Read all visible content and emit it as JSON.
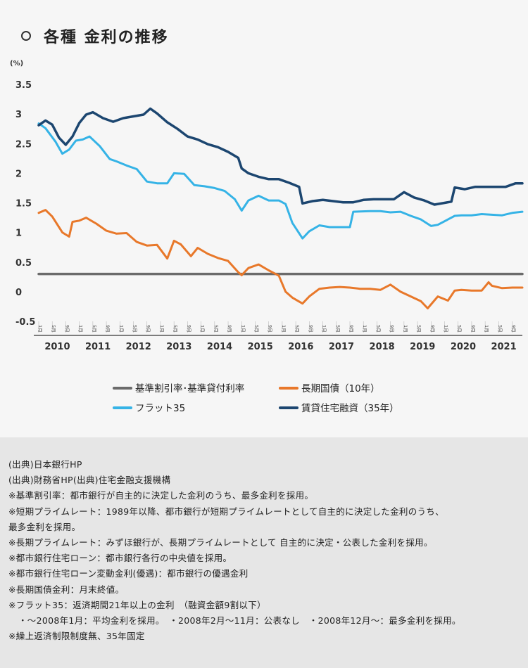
{
  "title": "各種 金利の推移",
  "unit_label": "(%)",
  "legend": {
    "base_rate": "基準割引率･基準貸付利率",
    "jgb10": "長期国債（10年）",
    "flat35": "フラット35",
    "bank_mortgage": "賃貸住宅融資（35年）"
  },
  "colors": {
    "base_rate": "#6b6b6b",
    "jgb10": "#e8782a",
    "flat35": "#35b3e6",
    "bank_mortgage": "#1c4670"
  },
  "chart_data": {
    "type": "line",
    "title": "各種 金利の推移",
    "ylabel": "(%)",
    "xlabel": "",
    "ylim": [
      -0.5,
      3.5
    ],
    "yticks": [
      "3.5",
      "3",
      "2.5",
      "2",
      "1.5",
      "1",
      "0.5",
      "0",
      "-0.5"
    ],
    "x_start": "2010-01",
    "x_end": "2021-12",
    "years": [
      "2010",
      "2011",
      "2012",
      "2013",
      "2014",
      "2015",
      "2016",
      "2017",
      "2018",
      "2019",
      "2020",
      "2021"
    ],
    "month_ticks": [
      "1月",
      "5月",
      "9月"
    ],
    "series": [
      {
        "key": "base_rate",
        "name": "基準割引率･基準貸付利率",
        "points": [
          [
            "2010-01",
            0.3
          ],
          [
            "2021-12",
            0.3
          ]
        ]
      },
      {
        "key": "jgb10",
        "name": "長期国債（10年）",
        "points": [
          [
            "2010-01",
            1.33
          ],
          [
            "2010-03",
            1.38
          ],
          [
            "2010-05",
            1.27
          ],
          [
            "2010-08",
            1.0
          ],
          [
            "2010-10",
            0.93
          ],
          [
            "2010-11",
            1.18
          ],
          [
            "2011-01",
            1.2
          ],
          [
            "2011-03",
            1.25
          ],
          [
            "2011-06",
            1.15
          ],
          [
            "2011-09",
            1.03
          ],
          [
            "2011-12",
            0.98
          ],
          [
            "2012-03",
            0.99
          ],
          [
            "2012-06",
            0.84
          ],
          [
            "2012-09",
            0.78
          ],
          [
            "2012-12",
            0.79
          ],
          [
            "2013-03",
            0.56
          ],
          [
            "2013-05",
            0.86
          ],
          [
            "2013-07",
            0.8
          ],
          [
            "2013-10",
            0.6
          ],
          [
            "2013-12",
            0.74
          ],
          [
            "2014-03",
            0.64
          ],
          [
            "2014-06",
            0.57
          ],
          [
            "2014-09",
            0.52
          ],
          [
            "2014-12",
            0.33
          ],
          [
            "2015-01",
            0.28
          ],
          [
            "2015-03",
            0.4
          ],
          [
            "2015-06",
            0.46
          ],
          [
            "2015-09",
            0.36
          ],
          [
            "2015-12",
            0.27
          ],
          [
            "2016-02",
            0.0
          ],
          [
            "2016-04",
            -0.1
          ],
          [
            "2016-07",
            -0.2
          ],
          [
            "2016-09",
            -0.08
          ],
          [
            "2016-12",
            0.05
          ],
          [
            "2017-03",
            0.07
          ],
          [
            "2017-06",
            0.08
          ],
          [
            "2017-09",
            0.07
          ],
          [
            "2017-12",
            0.05
          ],
          [
            "2018-03",
            0.05
          ],
          [
            "2018-06",
            0.03
          ],
          [
            "2018-09",
            0.12
          ],
          [
            "2018-12",
            0.0
          ],
          [
            "2019-03",
            -0.08
          ],
          [
            "2019-06",
            -0.16
          ],
          [
            "2019-08",
            -0.28
          ],
          [
            "2019-11",
            -0.08
          ],
          [
            "2020-02",
            -0.15
          ],
          [
            "2020-04",
            0.02
          ],
          [
            "2020-06",
            0.03
          ],
          [
            "2020-09",
            0.02
          ],
          [
            "2020-12",
            0.02
          ],
          [
            "2021-02",
            0.16
          ],
          [
            "2021-03",
            0.1
          ],
          [
            "2021-06",
            0.06
          ],
          [
            "2021-09",
            0.07
          ],
          [
            "2021-12",
            0.07
          ]
        ]
      },
      {
        "key": "flat35",
        "name": "フラット35",
        "points": [
          [
            "2010-01",
            2.84
          ],
          [
            "2010-03",
            2.76
          ],
          [
            "2010-06",
            2.53
          ],
          [
            "2010-08",
            2.33
          ],
          [
            "2010-10",
            2.4
          ],
          [
            "2010-12",
            2.55
          ],
          [
            "2011-02",
            2.57
          ],
          [
            "2011-04",
            2.62
          ],
          [
            "2011-07",
            2.46
          ],
          [
            "2011-10",
            2.24
          ],
          [
            "2011-12",
            2.2
          ],
          [
            "2012-03",
            2.13
          ],
          [
            "2012-06",
            2.07
          ],
          [
            "2012-09",
            1.86
          ],
          [
            "2012-12",
            1.83
          ],
          [
            "2013-03",
            1.83
          ],
          [
            "2013-05",
            2.0
          ],
          [
            "2013-08",
            1.99
          ],
          [
            "2013-11",
            1.8
          ],
          [
            "2014-02",
            1.78
          ],
          [
            "2014-05",
            1.75
          ],
          [
            "2014-08",
            1.7
          ],
          [
            "2014-11",
            1.56
          ],
          [
            "2015-01",
            1.37
          ],
          [
            "2015-03",
            1.54
          ],
          [
            "2015-06",
            1.62
          ],
          [
            "2015-09",
            1.54
          ],
          [
            "2015-12",
            1.54
          ],
          [
            "2016-02",
            1.48
          ],
          [
            "2016-04",
            1.16
          ],
          [
            "2016-07",
            0.9
          ],
          [
            "2016-09",
            1.02
          ],
          [
            "2016-12",
            1.12
          ],
          [
            "2017-03",
            1.09
          ],
          [
            "2017-06",
            1.09
          ],
          [
            "2017-09",
            1.09
          ],
          [
            "2017-10",
            1.35
          ],
          [
            "2018-03",
            1.36
          ],
          [
            "2018-06",
            1.36
          ],
          [
            "2018-09",
            1.34
          ],
          [
            "2018-12",
            1.35
          ],
          [
            "2019-03",
            1.28
          ],
          [
            "2019-06",
            1.22
          ],
          [
            "2019-09",
            1.11
          ],
          [
            "2019-11",
            1.13
          ],
          [
            "2020-02",
            1.22
          ],
          [
            "2020-04",
            1.28
          ],
          [
            "2020-06",
            1.29
          ],
          [
            "2020-09",
            1.29
          ],
          [
            "2020-12",
            1.31
          ],
          [
            "2021-03",
            1.3
          ],
          [
            "2021-06",
            1.29
          ],
          [
            "2021-09",
            1.33
          ],
          [
            "2021-12",
            1.35
          ]
        ]
      },
      {
        "key": "bank_mortgage",
        "name": "賃貸住宅融資（35年）",
        "points": [
          [
            "2010-01",
            2.81
          ],
          [
            "2010-03",
            2.89
          ],
          [
            "2010-05",
            2.82
          ],
          [
            "2010-07",
            2.6
          ],
          [
            "2010-09",
            2.48
          ],
          [
            "2010-11",
            2.62
          ],
          [
            "2011-01",
            2.85
          ],
          [
            "2011-03",
            2.99
          ],
          [
            "2011-05",
            3.03
          ],
          [
            "2011-08",
            2.93
          ],
          [
            "2011-11",
            2.87
          ],
          [
            "2012-02",
            2.93
          ],
          [
            "2012-05",
            2.96
          ],
          [
            "2012-08",
            2.99
          ],
          [
            "2012-10",
            3.09
          ],
          [
            "2012-12",
            3.01
          ],
          [
            "2013-03",
            2.86
          ],
          [
            "2013-06",
            2.75
          ],
          [
            "2013-09",
            2.62
          ],
          [
            "2013-12",
            2.57
          ],
          [
            "2014-03",
            2.49
          ],
          [
            "2014-06",
            2.44
          ],
          [
            "2014-09",
            2.36
          ],
          [
            "2014-12",
            2.26
          ],
          [
            "2015-01",
            2.08
          ],
          [
            "2015-03",
            2.0
          ],
          [
            "2015-06",
            1.94
          ],
          [
            "2015-09",
            1.9
          ],
          [
            "2015-12",
            1.9
          ],
          [
            "2016-03",
            1.84
          ],
          [
            "2016-06",
            1.77
          ],
          [
            "2016-07",
            1.49
          ],
          [
            "2016-10",
            1.53
          ],
          [
            "2017-01",
            1.55
          ],
          [
            "2017-04",
            1.53
          ],
          [
            "2017-07",
            1.51
          ],
          [
            "2017-10",
            1.51
          ],
          [
            "2018-01",
            1.55
          ],
          [
            "2018-04",
            1.56
          ],
          [
            "2018-07",
            1.56
          ],
          [
            "2018-10",
            1.56
          ],
          [
            "2019-01",
            1.68
          ],
          [
            "2019-04",
            1.59
          ],
          [
            "2019-07",
            1.54
          ],
          [
            "2019-10",
            1.47
          ],
          [
            "2020-01",
            1.5
          ],
          [
            "2020-03",
            1.52
          ],
          [
            "2020-04",
            1.76
          ],
          [
            "2020-07",
            1.73
          ],
          [
            "2020-10",
            1.77
          ],
          [
            "2021-01",
            1.77
          ],
          [
            "2021-04",
            1.77
          ],
          [
            "2021-07",
            1.77
          ],
          [
            "2021-10",
            1.83
          ],
          [
            "2021-12",
            1.83
          ]
        ]
      }
    ]
  },
  "notes": [
    "(出典)日本銀行HP",
    "(出典)財務省HP(出典)住宅金融支援機構",
    "※基準割引率：都市銀行が自主的に決定した金利のうち、最多金利を採用。",
    "※短期プライムレート：1989年以降、都市銀行が短期プライムレートとして自主的に決定した金利のうち、",
    "最多金利を採用。",
    "※長期プライムレート：みずほ銀行が、長期プライムレートとして 自主的に決定・公表した金利を採用。",
    "※都市銀行住宅ローン：都市銀行各行の中央値を採用。",
    "※都市銀行住宅ローン変動金利(優遇)：都市銀行の優遇金利",
    "※長期国債金利：月末終値。",
    "※フラット35：返済期間21年以上の金利　（融資金額9割以下）",
    "・～2008年1月：平均金利を採用。　・2008年2月～11月：公表なし　・2008年12月～：最多金利を採用。",
    "※繰上返済制限制度無、35年固定"
  ]
}
